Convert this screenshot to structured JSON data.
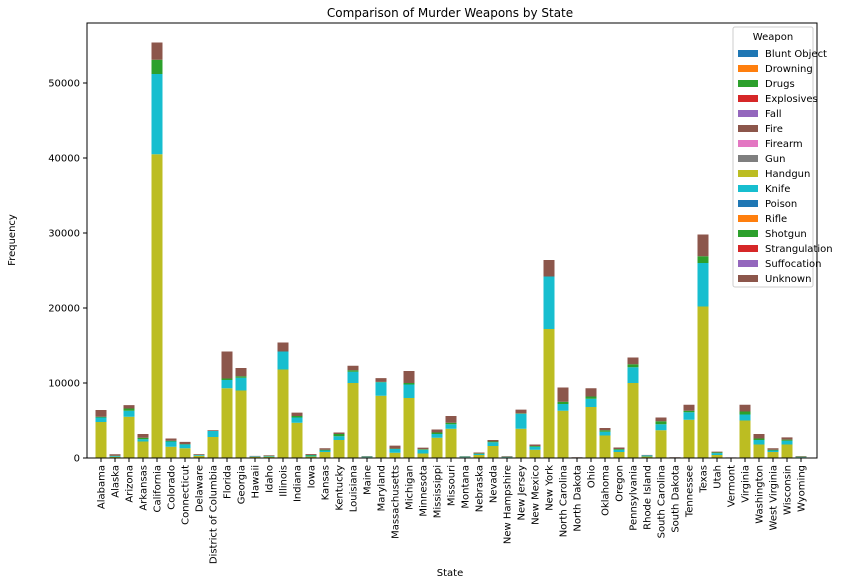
{
  "chart_data": {
    "type": "bar",
    "stacked": true,
    "title": "Comparison of Murder Weapons by State",
    "xlabel": "State",
    "ylabel": "Frequency",
    "ylim": [
      0,
      58000
    ],
    "yticks": [
      0,
      10000,
      20000,
      30000,
      40000,
      50000
    ],
    "legend": {
      "title": "Weapon",
      "placement": "top-right"
    },
    "categories": [
      "Alabama",
      "Alaska",
      "Arizona",
      "Arkansas",
      "California",
      "Colorado",
      "Connecticut",
      "Delaware",
      "District of Columbia",
      "Florida",
      "Georgia",
      "Hawaii",
      "Idaho",
      "Illinois",
      "Indiana",
      "Iowa",
      "Kansas",
      "Kentucky",
      "Louisiana",
      "Maine",
      "Maryland",
      "Massachusetts",
      "Michigan",
      "Minnesota",
      "Mississippi",
      "Missouri",
      "Montana",
      "Nebraska",
      "Nevada",
      "New Hampshire",
      "New Jersey",
      "New Mexico",
      "New York",
      "North Carolina",
      "North Dakota",
      "Ohio",
      "Oklahoma",
      "Oregon",
      "Pennsylvania",
      "Rhode Island",
      "South Carolina",
      "South Dakota",
      "Tennessee",
      "Texas",
      "Utah",
      "Vermont",
      "Virginia",
      "Washington",
      "West Virginia",
      "Wisconsin",
      "Wyoming"
    ],
    "series": [
      {
        "name": "Blunt Object",
        "color": "#1f77b4",
        "values": [
          0,
          0,
          0,
          0,
          0,
          0,
          0,
          0,
          0,
          0,
          0,
          0,
          0,
          0,
          0,
          0,
          0,
          0,
          0,
          0,
          0,
          0,
          0,
          0,
          0,
          0,
          0,
          0,
          0,
          0,
          0,
          0,
          0,
          0,
          0,
          0,
          0,
          0,
          0,
          0,
          0,
          0,
          0,
          0,
          0,
          0,
          0,
          0,
          0,
          0,
          0
        ]
      },
      {
        "name": "Drowning",
        "color": "#ff7f0e",
        "values": [
          0,
          0,
          0,
          0,
          0,
          0,
          0,
          0,
          0,
          0,
          0,
          0,
          0,
          0,
          0,
          0,
          0,
          0,
          0,
          0,
          0,
          0,
          0,
          0,
          0,
          0,
          0,
          0,
          0,
          0,
          0,
          0,
          0,
          0,
          0,
          0,
          0,
          0,
          0,
          0,
          0,
          0,
          0,
          0,
          0,
          0,
          0,
          0,
          0,
          0,
          0
        ]
      },
      {
        "name": "Drugs",
        "color": "#2ca02c",
        "values": [
          0,
          0,
          0,
          0,
          0,
          0,
          0,
          0,
          0,
          0,
          0,
          0,
          0,
          0,
          0,
          0,
          0,
          0,
          0,
          0,
          0,
          0,
          0,
          0,
          0,
          0,
          0,
          0,
          0,
          0,
          0,
          0,
          0,
          0,
          0,
          0,
          0,
          0,
          0,
          0,
          0,
          0,
          0,
          0,
          0,
          0,
          0,
          0,
          0,
          0,
          0
        ]
      },
      {
        "name": "Explosives",
        "color": "#d62728",
        "values": [
          0,
          0,
          0,
          0,
          0,
          0,
          0,
          0,
          0,
          0,
          0,
          0,
          0,
          0,
          0,
          0,
          0,
          0,
          0,
          0,
          0,
          0,
          0,
          0,
          0,
          0,
          0,
          0,
          0,
          0,
          0,
          0,
          0,
          0,
          0,
          0,
          0,
          0,
          0,
          0,
          0,
          0,
          0,
          0,
          0,
          0,
          0,
          0,
          0,
          0,
          0
        ]
      },
      {
        "name": "Fall",
        "color": "#9467bd",
        "values": [
          0,
          0,
          0,
          0,
          0,
          0,
          0,
          0,
          0,
          0,
          0,
          0,
          0,
          0,
          0,
          0,
          0,
          0,
          0,
          0,
          0,
          0,
          0,
          0,
          0,
          0,
          0,
          0,
          0,
          0,
          0,
          0,
          0,
          0,
          0,
          0,
          0,
          0,
          0,
          0,
          0,
          0,
          0,
          0,
          0,
          0,
          0,
          0,
          0,
          0,
          0
        ]
      },
      {
        "name": "Fire",
        "color": "#8c564b",
        "values": [
          0,
          0,
          0,
          0,
          0,
          0,
          0,
          0,
          0,
          0,
          0,
          0,
          0,
          0,
          0,
          0,
          0,
          0,
          0,
          0,
          0,
          0,
          0,
          0,
          0,
          0,
          0,
          0,
          0,
          0,
          0,
          0,
          0,
          0,
          0,
          0,
          0,
          0,
          0,
          0,
          0,
          0,
          0,
          0,
          0,
          0,
          0,
          0,
          0,
          0,
          0
        ]
      },
      {
        "name": "Firearm",
        "color": "#e377c2",
        "values": [
          0,
          0,
          0,
          0,
          0,
          0,
          0,
          0,
          0,
          0,
          0,
          0,
          0,
          0,
          0,
          0,
          0,
          0,
          0,
          0,
          0,
          0,
          0,
          0,
          0,
          0,
          0,
          0,
          0,
          0,
          0,
          0,
          0,
          0,
          0,
          0,
          0,
          0,
          0,
          0,
          0,
          0,
          0,
          0,
          0,
          0,
          0,
          0,
          0,
          0,
          0
        ]
      },
      {
        "name": "Gun",
        "color": "#7f7f7f",
        "values": [
          0,
          0,
          0,
          0,
          0,
          0,
          0,
          0,
          0,
          0,
          0,
          0,
          0,
          0,
          0,
          0,
          0,
          0,
          0,
          0,
          0,
          0,
          0,
          0,
          0,
          0,
          0,
          0,
          0,
          0,
          0,
          0,
          0,
          0,
          0,
          0,
          0,
          0,
          0,
          0,
          0,
          0,
          0,
          0,
          0,
          0,
          0,
          0,
          0,
          0,
          0
        ]
      },
      {
        "name": "Handgun",
        "color": "#bcbd22",
        "values": [
          4800,
          150,
          5500,
          2200,
          40500,
          1500,
          1300,
          300,
          2800,
          9300,
          9000,
          150,
          180,
          11800,
          4700,
          200,
          800,
          2400,
          10000,
          100,
          8300,
          700,
          8000,
          600,
          2700,
          3900,
          100,
          400,
          1600,
          100,
          3900,
          1100,
          17200,
          6300,
          0,
          6800,
          3000,
          800,
          10000,
          200,
          3700,
          0,
          5100,
          20200,
          400,
          0,
          5000,
          1800,
          800,
          1800,
          100
        ]
      },
      {
        "name": "Knife",
        "color": "#17becf",
        "values": [
          600,
          100,
          800,
          300,
          10700,
          700,
          500,
          100,
          800,
          1100,
          1700,
          70,
          80,
          2400,
          700,
          130,
          200,
          500,
          1500,
          80,
          1800,
          500,
          1800,
          500,
          500,
          600,
          80,
          150,
          500,
          60,
          2000,
          400,
          7000,
          900,
          50,
          1100,
          500,
          300,
          2100,
          150,
          800,
          50,
          1000,
          5800,
          250,
          30,
          800,
          600,
          200,
          500,
          50
        ]
      },
      {
        "name": "Poison",
        "color": "#1f77b4",
        "values": [
          0,
          0,
          0,
          0,
          0,
          0,
          0,
          0,
          0,
          0,
          0,
          0,
          0,
          0,
          0,
          0,
          0,
          0,
          0,
          0,
          0,
          0,
          0,
          0,
          0,
          0,
          0,
          0,
          0,
          0,
          0,
          0,
          0,
          0,
          0,
          0,
          0,
          0,
          0,
          0,
          0,
          0,
          0,
          0,
          0,
          0,
          0,
          0,
          0,
          0,
          0
        ]
      },
      {
        "name": "Rifle",
        "color": "#ff7f0e",
        "values": [
          0,
          0,
          0,
          0,
          0,
          0,
          0,
          0,
          0,
          0,
          0,
          0,
          0,
          0,
          0,
          0,
          0,
          0,
          0,
          0,
          0,
          0,
          0,
          0,
          0,
          0,
          0,
          0,
          0,
          0,
          0,
          0,
          0,
          0,
          0,
          0,
          0,
          0,
          0,
          0,
          0,
          0,
          0,
          0,
          0,
          0,
          0,
          0,
          0,
          0,
          0
        ]
      },
      {
        "name": "Shotgun",
        "color": "#2ca02c",
        "values": [
          100,
          50,
          300,
          200,
          1900,
          100,
          50,
          20,
          0,
          200,
          200,
          10,
          30,
          0,
          200,
          80,
          100,
          300,
          200,
          30,
          50,
          50,
          200,
          80,
          200,
          200,
          30,
          60,
          100,
          20,
          50,
          100,
          0,
          300,
          20,
          300,
          200,
          100,
          400,
          10,
          400,
          20,
          200,
          900,
          100,
          20,
          400,
          200,
          100,
          150,
          40
        ]
      },
      {
        "name": "Strangulation",
        "color": "#d62728",
        "values": [
          0,
          0,
          0,
          0,
          0,
          0,
          0,
          0,
          0,
          0,
          0,
          0,
          0,
          0,
          0,
          0,
          0,
          0,
          0,
          0,
          0,
          0,
          0,
          0,
          0,
          0,
          0,
          0,
          0,
          0,
          0,
          0,
          0,
          0,
          0,
          0,
          0,
          0,
          0,
          0,
          0,
          0,
          0,
          0,
          0,
          0,
          0,
          0,
          0,
          0,
          0
        ]
      },
      {
        "name": "Suffocation",
        "color": "#9467bd",
        "values": [
          0,
          0,
          0,
          0,
          0,
          0,
          0,
          0,
          0,
          0,
          0,
          0,
          0,
          0,
          0,
          0,
          0,
          0,
          0,
          0,
          0,
          0,
          0,
          0,
          0,
          0,
          0,
          0,
          0,
          0,
          0,
          0,
          0,
          0,
          0,
          0,
          0,
          0,
          0,
          0,
          0,
          0,
          0,
          0,
          0,
          0,
          0,
          0,
          0,
          0,
          0
        ]
      },
      {
        "name": "Unknown",
        "color": "#8c564b",
        "values": [
          900,
          200,
          450,
          500,
          2300,
          300,
          300,
          100,
          100,
          3600,
          1100,
          50,
          80,
          1200,
          450,
          120,
          200,
          200,
          600,
          50,
          500,
          400,
          1600,
          200,
          400,
          900,
          40,
          120,
          200,
          70,
          500,
          200,
          2200,
          1900,
          30,
          1100,
          300,
          200,
          900,
          50,
          500,
          30,
          800,
          2900,
          100,
          30,
          900,
          600,
          200,
          300,
          60
        ]
      }
    ]
  }
}
